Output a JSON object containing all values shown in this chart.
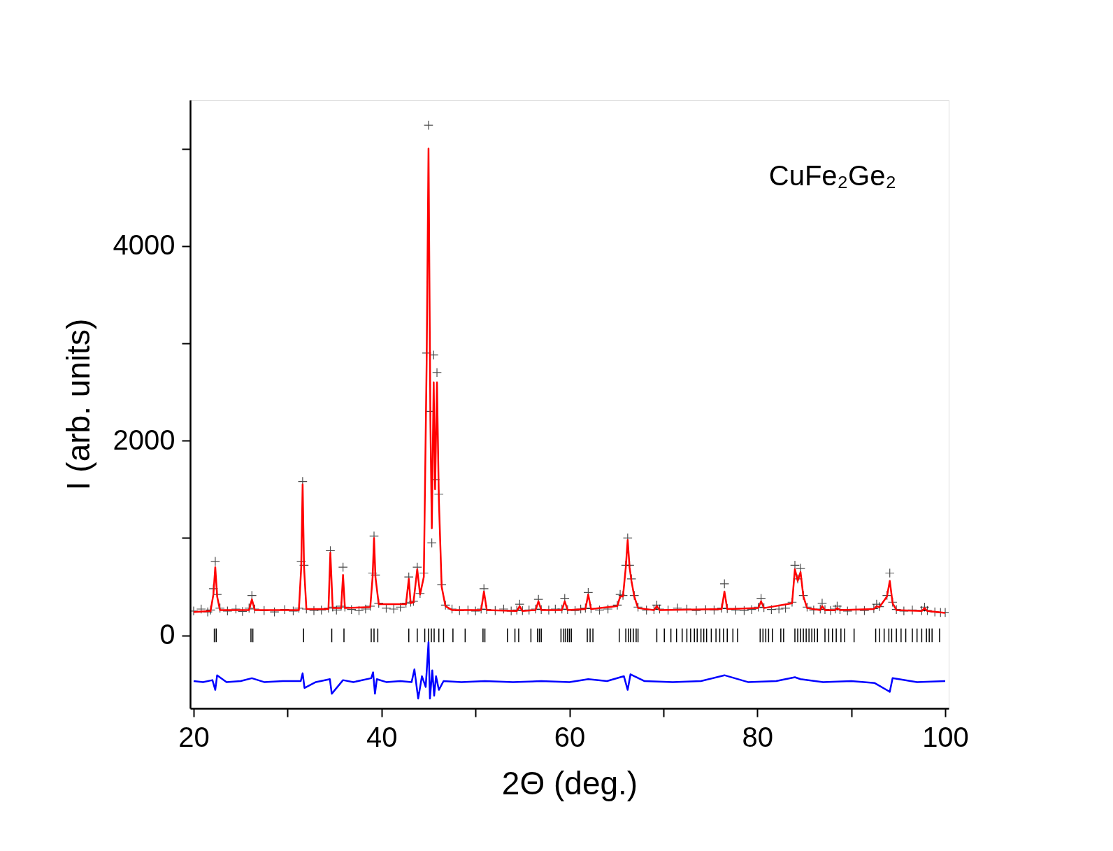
{
  "chart_data": {
    "type": "scatter",
    "xlabel": "2Θ (deg.)",
    "ylabel": "I (arb. units)",
    "annotations": [
      "CuFe₂Ge₂"
    ],
    "xlim": [
      20,
      100
    ],
    "ylim": [
      -750,
      5500
    ],
    "xticks": [
      20,
      {
        "value": 30,
        "label": null
      },
      40,
      {
        "value": 50,
        "label": null
      },
      60,
      {
        "value": 70,
        "label": null
      },
      80,
      {
        "value": 90,
        "label": null
      },
      100
    ],
    "yticks": [
      0,
      {
        "value": 1000,
        "label": null
      },
      2000,
      {
        "value": 3000,
        "label": null
      },
      4000,
      {
        "value": 5000,
        "label": null
      }
    ],
    "grid": false,
    "series": [
      {
        "marker": "cross",
        "color": "#000000",
        "x": [
          20,
          20.8,
          21.5,
          21.8,
          22.1,
          22.3,
          22.5,
          22.8,
          23.6,
          24.5,
          25.2,
          25.9,
          26.2,
          26.5,
          27.5,
          28.6,
          29.7,
          30.6,
          31.2,
          31.45,
          31.6,
          31.75,
          32.0,
          32.8,
          33.6,
          34.35,
          34.55,
          34.8,
          35.2,
          35.7,
          35.9,
          36.1,
          36.8,
          37.6,
          38.3,
          38.8,
          39.05,
          39.2,
          39.35,
          39.7,
          40.5,
          41.3,
          42.0,
          42.6,
          42.9,
          43.1,
          43.4,
          43.8,
          44.1,
          44.5,
          44.8,
          45.0,
          45.2,
          45.35,
          45.55,
          45.7,
          45.9,
          46.1,
          46.4,
          46.8,
          47.5,
          48.3,
          49.2,
          50.0,
          50.6,
          50.9,
          51.2,
          52.1,
          53.0,
          53.8,
          54.4,
          54.7,
          55.0,
          55.7,
          56.4,
          56.7,
          57.0,
          57.8,
          58.5,
          59.2,
          59.5,
          59.8,
          60.6,
          61.2,
          61.7,
          62.0,
          62.3,
          63.2,
          64.1,
          65.1,
          65.4,
          65.7,
          66.0,
          66.2,
          66.4,
          66.6,
          66.9,
          67.3,
          68.2,
          69.0,
          69.3,
          69.6,
          70.5,
          71.5,
          72.5,
          73.5,
          74.5,
          75.4,
          76.2,
          76.5,
          76.8,
          77.7,
          78.6,
          79.4,
          80.1,
          80.4,
          80.7,
          81.5,
          82.3,
          83.0,
          83.7,
          84.0,
          84.3,
          84.6,
          84.9,
          85.3,
          86.0,
          86.7,
          86.9,
          87.2,
          87.8,
          88.3,
          88.5,
          88.8,
          89.6,
          90.5,
          91.4,
          92.4,
          92.7,
          93.0,
          93.8,
          94.1,
          94.4,
          94.8,
          95.6,
          96.5,
          97.5,
          97.8,
          98.1,
          98.9,
          99.5,
          100
        ],
        "values": [
          250,
          270,
          240,
          260,
          480,
          760,
          420,
          280,
          250,
          270,
          245,
          280,
          410,
          270,
          255,
          240,
          265,
          250,
          280,
          760,
          1580,
          720,
          270,
          255,
          260,
          280,
          870,
          290,
          260,
          300,
          700,
          290,
          265,
          255,
          270,
          300,
          640,
          1020,
          620,
          330,
          280,
          270,
          290,
          330,
          600,
          340,
          350,
          700,
          430,
          640,
          2900,
          5240,
          2300,
          950,
          2880,
          1600,
          2700,
          1450,
          520,
          310,
          270,
          255,
          260,
          250,
          270,
          480,
          265,
          255,
          270,
          250,
          260,
          320,
          255,
          260,
          270,
          370,
          265,
          260,
          270,
          270,
          380,
          265,
          255,
          270,
          280,
          440,
          275,
          260,
          270,
          310,
          420,
          410,
          720,
          1000,
          720,
          580,
          410,
          290,
          260,
          265,
          310,
          270,
          260,
          280,
          270,
          255,
          265,
          260,
          280,
          530,
          275,
          260,
          255,
          265,
          290,
          380,
          285,
          265,
          270,
          280,
          340,
          720,
          580,
          690,
          410,
          290,
          260,
          270,
          330,
          265,
          255,
          270,
          300,
          265,
          250,
          260,
          255,
          275,
          320,
          295,
          410,
          640,
          340,
          265,
          250,
          260,
          255,
          290,
          255,
          240,
          235,
          235
        ]
      },
      {
        "type": "line",
        "color": "#ff0000",
        "x": [
          20,
          21.8,
          22.1,
          22.3,
          22.5,
          22.8,
          25.9,
          26.2,
          26.5,
          31.2,
          31.45,
          31.6,
          31.75,
          32.0,
          34.35,
          34.55,
          34.8,
          35.7,
          35.9,
          36.1,
          38.8,
          39.05,
          39.2,
          39.35,
          39.7,
          42.6,
          42.9,
          43.1,
          43.4,
          43.8,
          44.1,
          44.5,
          44.8,
          45.0,
          45.2,
          45.35,
          45.55,
          45.7,
          45.9,
          46.1,
          46.4,
          46.8,
          47.5,
          50.6,
          50.9,
          51.2,
          54.4,
          54.7,
          55.0,
          56.4,
          56.7,
          57.0,
          59.2,
          59.5,
          59.8,
          61.7,
          62.0,
          62.3,
          65.1,
          65.4,
          65.7,
          66.0,
          66.2,
          66.4,
          66.6,
          66.9,
          67.3,
          69.0,
          69.3,
          69.6,
          76.2,
          76.5,
          76.8,
          80.1,
          80.4,
          80.7,
          83.7,
          84.0,
          84.3,
          84.6,
          84.9,
          85.3,
          86.7,
          86.9,
          87.2,
          88.3,
          88.5,
          88.8,
          92.4,
          92.7,
          93.0,
          93.8,
          94.1,
          94.4,
          94.8,
          97.5,
          97.8,
          98.1,
          100
        ],
        "values": [
          240,
          250,
          420,
          700,
          400,
          260,
          260,
          370,
          260,
          260,
          700,
          1550,
          700,
          270,
          270,
          850,
          280,
          280,
          620,
          280,
          290,
          600,
          1000,
          600,
          320,
          320,
          580,
          330,
          340,
          680,
          420,
          600,
          2800,
          5000,
          2200,
          1100,
          2600,
          1500,
          2600,
          1400,
          500,
          300,
          260,
          260,
          450,
          260,
          250,
          300,
          250,
          260,
          350,
          260,
          260,
          350,
          260,
          270,
          420,
          270,
          300,
          400,
          400,
          700,
          980,
          700,
          560,
          400,
          280,
          260,
          300,
          260,
          270,
          450,
          270,
          280,
          350,
          280,
          330,
          680,
          560,
          650,
          400,
          280,
          260,
          300,
          260,
          260,
          280,
          260,
          270,
          300,
          290,
          400,
          560,
          330,
          260,
          250,
          280,
          250,
          230
        ]
      },
      {
        "type": "bar",
        "color": "#000000",
        "x": [
          22.2,
          22.4,
          26.1,
          26.3,
          31.7,
          34.7,
          36.0,
          38.9,
          39.2,
          39.6,
          42.9,
          43.8,
          44.6,
          45.0,
          45.3,
          45.6,
          46.1,
          46.6,
          47.6,
          48.9,
          50.8,
          51.0,
          53.4,
          54.2,
          54.6,
          55.9,
          56.6,
          56.8,
          57.0,
          59.1,
          59.4,
          59.6,
          59.8,
          60.0,
          60.2,
          61.9,
          62.2,
          62.5,
          65.3,
          66.0,
          66.3,
          66.5,
          66.8,
          67.1,
          67.3,
          69.3,
          70.1,
          70.8,
          71.4,
          72.0,
          72.5,
          72.9,
          73.3,
          73.6,
          74.0,
          74.3,
          74.6,
          75.1,
          75.6,
          76.0,
          76.4,
          76.8,
          77.4,
          77.9,
          80.3,
          80.6,
          80.9,
          81.2,
          81.6,
          82.5,
          82.8,
          84.0,
          84.3,
          84.6,
          84.9,
          85.2,
          85.5,
          85.8,
          86.1,
          86.4,
          87.2,
          87.6,
          88.0,
          88.4,
          88.9,
          89.3,
          90.3,
          92.6,
          93.0,
          93.5,
          94.0,
          94.3,
          94.8,
          95.3,
          95.8,
          96.5,
          97.0,
          97.5,
          98.0,
          98.3,
          98.6,
          99.4
        ],
        "base": [
          -70,
          -70,
          -70,
          -70,
          -70,
          -70,
          -70,
          -70,
          -70,
          -70,
          -70,
          -70,
          -70,
          -70,
          -70,
          -70,
          -70,
          -70,
          -70,
          -70,
          -70,
          -70,
          -70,
          -70,
          -70,
          -70,
          -70,
          -70,
          -70,
          -70,
          -70,
          -70,
          -70,
          -70,
          -70,
          -70,
          -70,
          -70,
          -70,
          -70,
          -70,
          -70,
          -70,
          -70,
          -70,
          -70,
          -70,
          -70,
          -70,
          -70,
          -70,
          -70,
          -70,
          -70,
          -70,
          -70,
          -70,
          -70,
          -70,
          -70,
          -70,
          -70,
          -70,
          -70,
          -70,
          -70,
          -70,
          -70,
          -70,
          -70,
          -70,
          -70,
          -70,
          -70,
          -70,
          -70,
          -70,
          -70,
          -70,
          -70,
          -70,
          -70,
          -70,
          -70,
          -70,
          -70,
          -70,
          -70,
          -70,
          -70,
          -70,
          -70,
          -70,
          -70,
          -70,
          -70,
          -70,
          -70,
          -70,
          -70,
          -70,
          -70
        ],
        "values": [
          140,
          140,
          140,
          140,
          140,
          140,
          140,
          140,
          140,
          140,
          140,
          140,
          140,
          140,
          140,
          140,
          140,
          140,
          140,
          140,
          140,
          140,
          140,
          140,
          140,
          140,
          140,
          140,
          140,
          140,
          140,
          140,
          140,
          140,
          140,
          140,
          140,
          140,
          140,
          140,
          140,
          140,
          140,
          140,
          140,
          140,
          140,
          140,
          140,
          140,
          140,
          140,
          140,
          140,
          140,
          140,
          140,
          140,
          140,
          140,
          140,
          140,
          140,
          140,
          140,
          140,
          140,
          140,
          140,
          140,
          140,
          140,
          140,
          140,
          140,
          140,
          140,
          140,
          140,
          140,
          140,
          140,
          140,
          140,
          140,
          140,
          140,
          140,
          140,
          140,
          140,
          140,
          140,
          140,
          140,
          140,
          140,
          140,
          140,
          140,
          140,
          140
        ]
      },
      {
        "type": "line",
        "color": "#0000ff",
        "x": [
          20,
          21.0,
          22.0,
          22.3,
          22.5,
          23.5,
          25.0,
          26.2,
          27.5,
          29.5,
          31.4,
          31.6,
          31.8,
          33.0,
          34.5,
          34.7,
          35.9,
          37.0,
          38.9,
          39.1,
          39.3,
          39.5,
          40.5,
          42.0,
          43.2,
          43.5,
          43.9,
          44.3,
          44.7,
          45.0,
          45.15,
          45.4,
          45.6,
          45.8,
          46.1,
          46.6,
          48.5,
          51.0,
          54.0,
          57.0,
          60.0,
          62.0,
          64.0,
          65.8,
          66.2,
          66.5,
          68.0,
          71.0,
          74.0,
          76.5,
          79.0,
          82.0,
          84.0,
          84.6,
          87.0,
          90.0,
          92.5,
          94.1,
          94.4,
          97.0,
          100
        ],
        "values": [
          -470,
          -480,
          -460,
          -560,
          -410,
          -480,
          -470,
          -440,
          -480,
          -470,
          -470,
          -390,
          -540,
          -480,
          -450,
          -600,
          -460,
          -480,
          -440,
          -380,
          -600,
          -450,
          -480,
          -470,
          -480,
          -350,
          -650,
          -420,
          -530,
          -70,
          -650,
          -360,
          -620,
          -420,
          -560,
          -470,
          -480,
          -470,
          -480,
          -470,
          -480,
          -450,
          -470,
          -420,
          -560,
          -400,
          -470,
          -480,
          -470,
          -410,
          -480,
          -470,
          -430,
          -450,
          -480,
          -470,
          -490,
          -580,
          -440,
          -480,
          -470
        ]
      }
    ]
  }
}
